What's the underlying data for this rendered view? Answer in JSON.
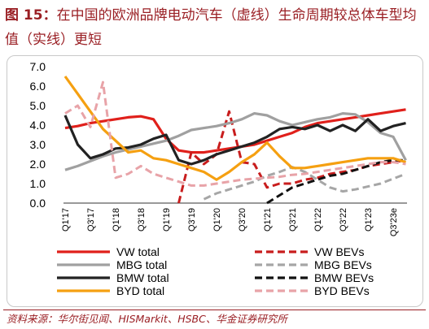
{
  "figure": {
    "label": "图 15：",
    "title": "在中国的欧洲品牌电动汽车（虚线）生命周期较总体车型均值（实线）更短"
  },
  "source": "资料来源：华尔街见闻、HISMarkit、HSBC、华金证券研究所",
  "colors": {
    "title": "#9a1f24",
    "axis": "#333333",
    "frame": "#c9c9c9"
  },
  "chart_data": {
    "type": "line",
    "x_tick_labels": [
      "Q1'17",
      "Q3'17",
      "Q1'18",
      "Q3'18",
      "Q1'19",
      "Q3'19",
      "Q1'20",
      "Q3'20",
      "Q1'21",
      "Q3'21",
      "Q1'22",
      "Q3'22",
      "Q1'23",
      "Q3'23e"
    ],
    "ylim": [
      0,
      7
    ],
    "y_tick_labels": [
      "0.0",
      "1.0",
      "2.0",
      "3.0",
      "4.0",
      "5.0",
      "6.0",
      "7.0"
    ],
    "grid": false,
    "legend": "bottom",
    "series": [
      {
        "name": "VW total",
        "color": "#e0201b",
        "dashed": false,
        "values": [
          3.85,
          3.95,
          4.1,
          4.2,
          4.3,
          4.4,
          4.45,
          4.3,
          3.3,
          2.7,
          2.6,
          2.6,
          2.7,
          2.8,
          2.9,
          3.0,
          3.2,
          3.4,
          3.6,
          3.9,
          4.1,
          4.2,
          4.3,
          4.4,
          4.5,
          4.6,
          4.7,
          4.8
        ]
      },
      {
        "name": "VW BEVs",
        "color": "#c81d1d",
        "dashed": true,
        "values": [
          null,
          null,
          null,
          null,
          null,
          null,
          null,
          null,
          null,
          0.0,
          2.6,
          2.0,
          2.5,
          4.7,
          2.1,
          2.0,
          0.8,
          1.0,
          1.0,
          1.2,
          1.3,
          1.5,
          1.6,
          1.7,
          1.9,
          2.0,
          2.1,
          2.2
        ]
      },
      {
        "name": "MBG total",
        "color": "#a0a0a0",
        "dashed": false,
        "values": [
          1.7,
          1.9,
          2.15,
          2.4,
          2.6,
          2.75,
          2.9,
          3.05,
          3.2,
          3.45,
          3.75,
          3.85,
          3.95,
          4.1,
          4.3,
          4.6,
          4.5,
          4.2,
          4.0,
          4.15,
          4.3,
          4.4,
          4.6,
          4.55,
          4.15,
          3.6,
          3.4,
          2.2
        ]
      },
      {
        "name": "MBG BEVs",
        "color": "#a6a6a6",
        "dashed": true,
        "values": [
          null,
          null,
          null,
          null,
          null,
          null,
          null,
          null,
          null,
          null,
          null,
          0.2,
          0.5,
          0.7,
          0.9,
          1.1,
          1.4,
          1.6,
          1.85,
          1.6,
          1.2,
          0.8,
          0.6,
          0.7,
          0.85,
          1.0,
          1.25,
          1.5
        ]
      },
      {
        "name": "BMW total",
        "color": "#222222",
        "dashed": false,
        "values": [
          4.5,
          3.0,
          2.3,
          2.5,
          2.8,
          2.85,
          3.0,
          3.3,
          3.5,
          2.2,
          2.0,
          2.2,
          2.5,
          2.7,
          2.9,
          3.1,
          3.4,
          3.8,
          3.9,
          3.8,
          4.0,
          3.7,
          4.0,
          3.7,
          4.3,
          3.7,
          3.95,
          4.1
        ]
      },
      {
        "name": "BMW BEVs",
        "color": "#111111",
        "dashed": true,
        "values": [
          null,
          null,
          null,
          null,
          null,
          null,
          null,
          null,
          null,
          null,
          null,
          null,
          null,
          null,
          null,
          null,
          0.0,
          0.4,
          0.8,
          1.0,
          1.2,
          1.4,
          1.5,
          1.7,
          1.9,
          2.1,
          2.2,
          2.2
        ]
      },
      {
        "name": "BYD total",
        "color": "#f5a011",
        "dashed": false,
        "values": [
          6.5,
          5.6,
          4.7,
          3.8,
          3.2,
          2.6,
          2.7,
          2.3,
          2.2,
          2.0,
          1.8,
          1.6,
          1.2,
          1.6,
          2.1,
          2.5,
          3.1,
          2.4,
          1.8,
          1.8,
          1.9,
          2.0,
          2.1,
          2.2,
          2.3,
          2.3,
          2.3,
          2.1
        ]
      },
      {
        "name": "BYD BEVs",
        "color": "#e8a3a8",
        "dashed": true,
        "values": [
          4.6,
          5.0,
          3.9,
          6.2,
          1.3,
          1.5,
          1.9,
          1.5,
          1.3,
          1.1,
          0.9,
          0.9,
          1.0,
          1.1,
          1.2,
          1.25,
          1.3,
          1.35,
          1.45,
          1.5,
          1.6,
          1.7,
          1.8,
          1.9,
          2.0,
          2.1,
          2.1,
          2.0
        ]
      }
    ]
  }
}
